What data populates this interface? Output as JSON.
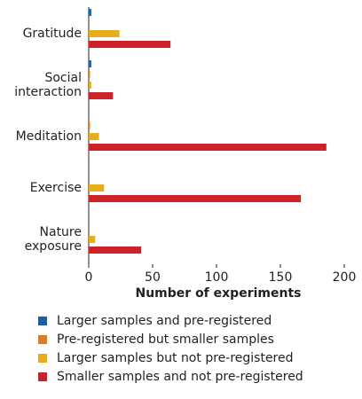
{
  "chart_data": {
    "type": "bar",
    "orientation": "horizontal",
    "categories": [
      "Gratitude",
      "Social interaction",
      "Meditation",
      "Exercise",
      "Nature exposure"
    ],
    "series": [
      {
        "name": "Larger samples and pre-registered",
        "color": "#1f5fa8",
        "values": [
          2,
          2,
          0,
          0,
          0
        ]
      },
      {
        "name": "Pre-registered but smaller samples",
        "color": "#e07b22",
        "values": [
          0,
          1,
          1,
          0,
          0
        ]
      },
      {
        "name": "Larger samples but not pre-registered",
        "color": "#e6ad1f",
        "values": [
          24,
          2,
          8,
          12,
          5
        ]
      },
      {
        "name": "Smaller samples and not pre-registered",
        "color": "#cc2229",
        "values": [
          64,
          19,
          186,
          166,
          41
        ]
      }
    ],
    "x_label": "Number of experiments",
    "xlim": [
      0,
      200
    ],
    "xticks": [
      0,
      50,
      100,
      150,
      200
    ],
    "legend": "bottom"
  }
}
